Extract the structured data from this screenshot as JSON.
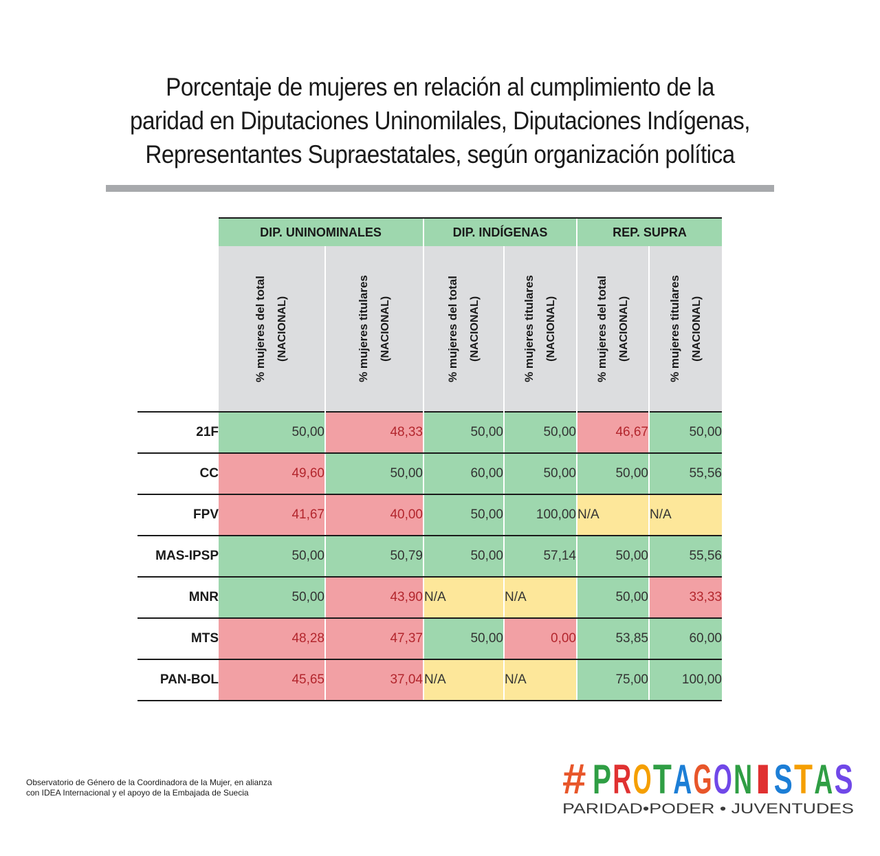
{
  "title_lines": [
    "Porcentaje de mujeres en relación al cumplimiento de la",
    "paridad en Diputaciones Uninomilales, Diputaciones Indígenas,",
    "Representantes Supraestatales, según organización política"
  ],
  "colors": {
    "ok": "#9ed7ae",
    "bad": "#f2a0a4",
    "na": "#fde79a",
    "header_bg": "#dcdddf"
  },
  "chart_data": {
    "type": "table",
    "groups": [
      "DIP. UNINOMINALES",
      "DIP. INDÍGENAS",
      "REP. SUPRA"
    ],
    "subheaders": [
      {
        "line1": "% mujeres del total",
        "line2": "(NACIONAL)"
      },
      {
        "line1": "% mujeres titulares",
        "line2": "(NACIONAL)"
      },
      {
        "line1": "% mujeres del total",
        "line2": "(NACIONAL)"
      },
      {
        "line1": "% mujeres titulares",
        "line2": "(NACIONAL)"
      },
      {
        "line1": "% mujeres del total",
        "line2": "(NACIONAL)"
      },
      {
        "line1": "% mujeres titulares",
        "line2": "(NACIONAL)"
      }
    ],
    "rows": [
      {
        "party": "21F",
        "values": [
          "50,00",
          "48,33",
          "50,00",
          "50,00",
          "46,67",
          "50,00"
        ],
        "status": [
          "ok",
          "bad",
          "ok",
          "ok",
          "bad",
          "ok"
        ]
      },
      {
        "party": "CC",
        "values": [
          "49,60",
          "50,00",
          "60,00",
          "50,00",
          "50,00",
          "55,56"
        ],
        "status": [
          "bad",
          "ok",
          "ok",
          "ok",
          "ok",
          "ok"
        ]
      },
      {
        "party": "FPV",
        "values": [
          "41,67",
          "40,00",
          "50,00",
          "100,00",
          "N/A",
          "N/A"
        ],
        "status": [
          "bad",
          "bad",
          "ok",
          "ok",
          "na",
          "na"
        ]
      },
      {
        "party": "MAS-IPSP",
        "values": [
          "50,00",
          "50,79",
          "50,00",
          "57,14",
          "50,00",
          "55,56"
        ],
        "status": [
          "ok",
          "ok",
          "ok",
          "ok",
          "ok",
          "ok"
        ]
      },
      {
        "party": "MNR",
        "values": [
          "50,00",
          "43,90",
          "N/A",
          "N/A",
          "50,00",
          "33,33"
        ],
        "status": [
          "ok",
          "bad",
          "na",
          "na",
          "ok",
          "bad"
        ]
      },
      {
        "party": "MTS",
        "values": [
          "48,28",
          "47,37",
          "50,00",
          "0,00",
          "53,85",
          "60,00"
        ],
        "status": [
          "bad",
          "bad",
          "ok",
          "bad",
          "ok",
          "ok"
        ]
      },
      {
        "party": "PAN-BOL",
        "values": [
          "45,65",
          "37,04",
          "N/A",
          "N/A",
          "75,00",
          "100,00"
        ],
        "status": [
          "bad",
          "bad",
          "na",
          "na",
          "ok",
          "ok"
        ]
      }
    ]
  },
  "source_lines": [
    "Observatorio de Género de la Coordinadora de la Mujer, en alianza",
    "con IDEA Internacional y el apoyo de la Embajada de Suecia"
  ],
  "logo": {
    "hashtag": "#",
    "letters": [
      "P",
      "R",
      "O",
      "T",
      "A",
      "G",
      "O",
      "N",
      "I",
      "S",
      "T",
      "A",
      "S"
    ],
    "tagline": "PARIDAD•PODER • JUVENTUDES"
  }
}
